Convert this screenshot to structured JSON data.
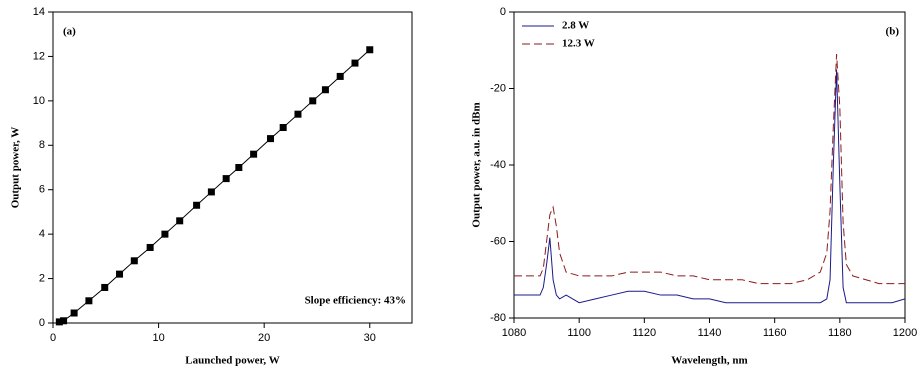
{
  "chart_data": [
    {
      "type": "line",
      "panel_label": "(a)",
      "annotation": "Slope efficiency: 43%",
      "x_label": "Launched power, W",
      "y_label": "Output power, W",
      "xlim": [
        0,
        34
      ],
      "xticks": [
        0,
        10,
        20,
        30
      ],
      "ylim": [
        0,
        14
      ],
      "yticks": [
        0,
        2,
        4,
        6,
        8,
        10,
        12,
        14
      ],
      "markers": "square",
      "x": [
        0.6,
        1.0,
        2.0,
        3.4,
        4.9,
        6.3,
        7.7,
        9.2,
        10.6,
        12.0,
        13.6,
        15.0,
        16.4,
        17.6,
        19.0,
        20.6,
        21.8,
        23.2,
        24.6,
        25.8,
        27.2,
        28.6,
        30.0
      ],
      "series": [
        {
          "color": "#000000",
          "values": [
            0.05,
            0.1,
            0.45,
            1.0,
            1.6,
            2.2,
            2.8,
            3.4,
            4.0,
            4.6,
            5.3,
            5.9,
            6.5,
            7.0,
            7.6,
            8.3,
            8.8,
            9.4,
            10.0,
            10.5,
            11.1,
            11.7,
            12.3
          ]
        }
      ]
    },
    {
      "type": "line",
      "panel_label": "(b)",
      "x_label": "Wavelength, nm",
      "y_label": "Output power, a.u. in dBm",
      "xlim": [
        1080,
        1200
      ],
      "xticks": [
        1080,
        1100,
        1120,
        1140,
        1160,
        1180,
        1200
      ],
      "ylim": [
        -80,
        0
      ],
      "yticks": [
        -80,
        -60,
        -40,
        -20,
        0
      ],
      "legend": "upper left",
      "x": [
        1080,
        1084,
        1088,
        1089,
        1090,
        1091,
        1092,
        1093,
        1094,
        1096,
        1100,
        1105,
        1110,
        1115,
        1120,
        1125,
        1130,
        1135,
        1140,
        1145,
        1150,
        1155,
        1160,
        1165,
        1170,
        1174,
        1176,
        1177,
        1178,
        1179,
        1180,
        1181,
        1182,
        1184,
        1188,
        1192,
        1196,
        1200
      ],
      "series": [
        {
          "name": "2.8 W",
          "color": "#1a1a8c",
          "dash": false,
          "values": [
            -74,
            -74,
            -74,
            -72,
            -66,
            -59,
            -70,
            -74,
            -75,
            -74,
            -76,
            -75,
            -74,
            -73,
            -73,
            -74,
            -74,
            -75,
            -75,
            -76,
            -76,
            -76,
            -76,
            -76,
            -76,
            -76,
            -75,
            -70,
            -40,
            -15,
            -45,
            -72,
            -76,
            -76,
            -76,
            -76,
            -76,
            -75
          ]
        },
        {
          "name": "12.3 W",
          "color": "#8b1a1a",
          "dash": true,
          "values": [
            -69,
            -69,
            -69,
            -67,
            -60,
            -53,
            -51,
            -56,
            -63,
            -68,
            -69,
            -69,
            -69,
            -68,
            -68,
            -68,
            -69,
            -69,
            -70,
            -70,
            -70,
            -71,
            -71,
            -71,
            -70,
            -68,
            -63,
            -52,
            -30,
            -11,
            -25,
            -55,
            -66,
            -69,
            -70,
            -71,
            -71,
            -71
          ]
        }
      ]
    }
  ]
}
